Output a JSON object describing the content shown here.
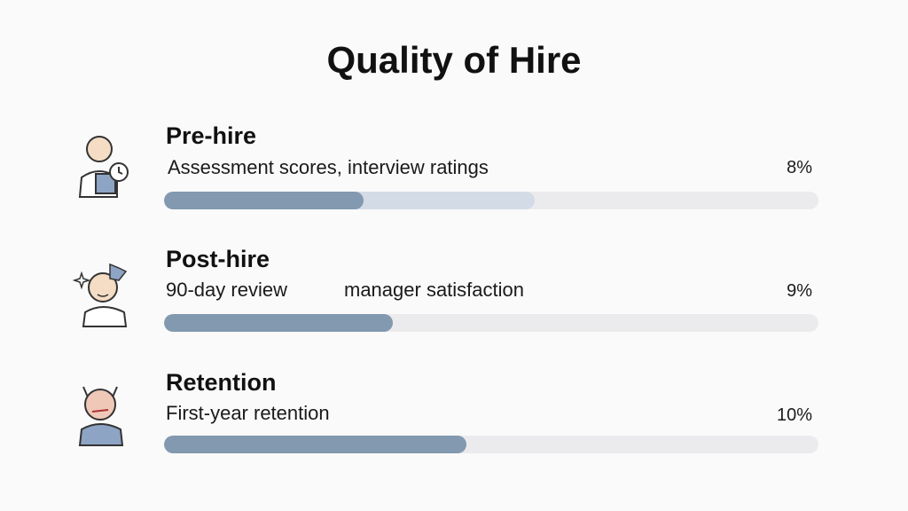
{
  "title": "Quality of Hire",
  "items": [
    {
      "heading": "Pre-hire",
      "description": [
        "Assessment scores, interview ratings"
      ],
      "percent": "8%"
    },
    {
      "heading": "Post-hire",
      "description": [
        "90-day review",
        "manager satisfaction"
      ],
      "percent": "9%"
    },
    {
      "heading": "Retention",
      "description": [
        "First-year retention"
      ],
      "percent": "10%"
    }
  ]
}
